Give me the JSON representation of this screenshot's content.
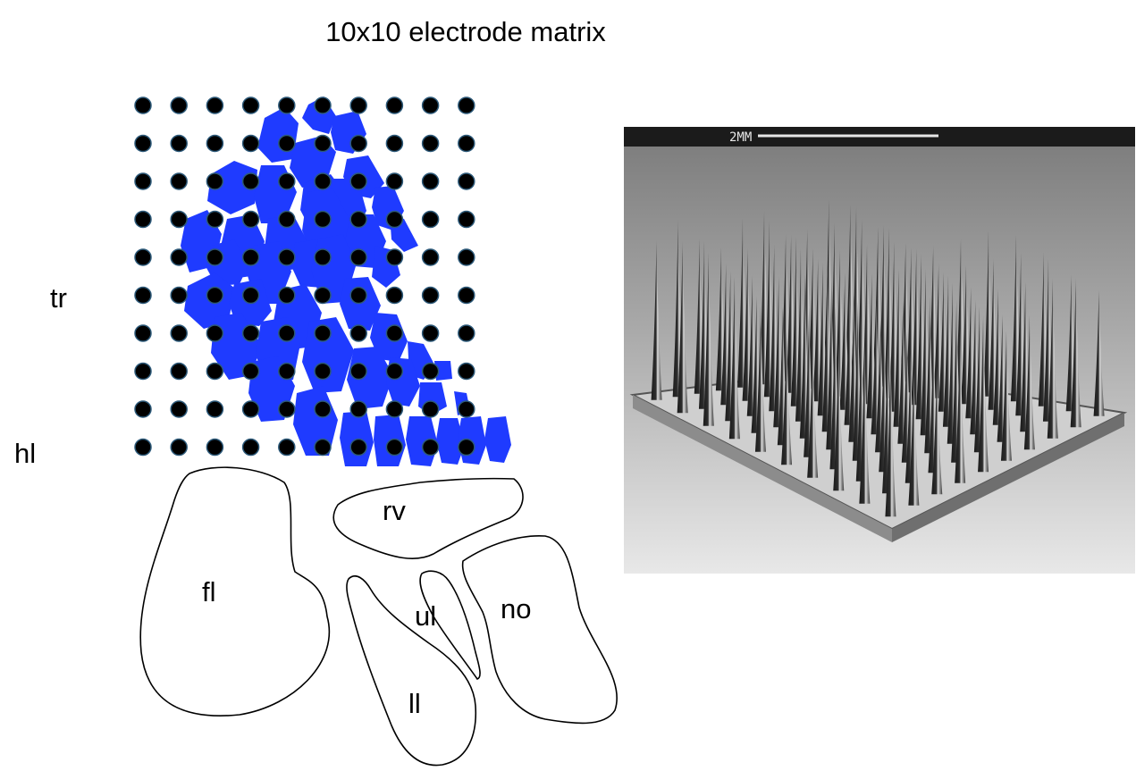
{
  "title": "10x10 electrode matrix",
  "row_labels": {
    "tr": "tr",
    "hl": "hl"
  },
  "matrix": {
    "rows": 10,
    "cols": 10
  },
  "regions": {
    "fl": "fl",
    "rv": "rv",
    "ul": "ul",
    "ll": "ll",
    "no": "no"
  },
  "photo": {
    "scale_label": "2MM"
  },
  "colors": {
    "barrel_fill": "#1f3bff",
    "electrode": "#000000",
    "electrode_ring": "#2d5a7a"
  }
}
